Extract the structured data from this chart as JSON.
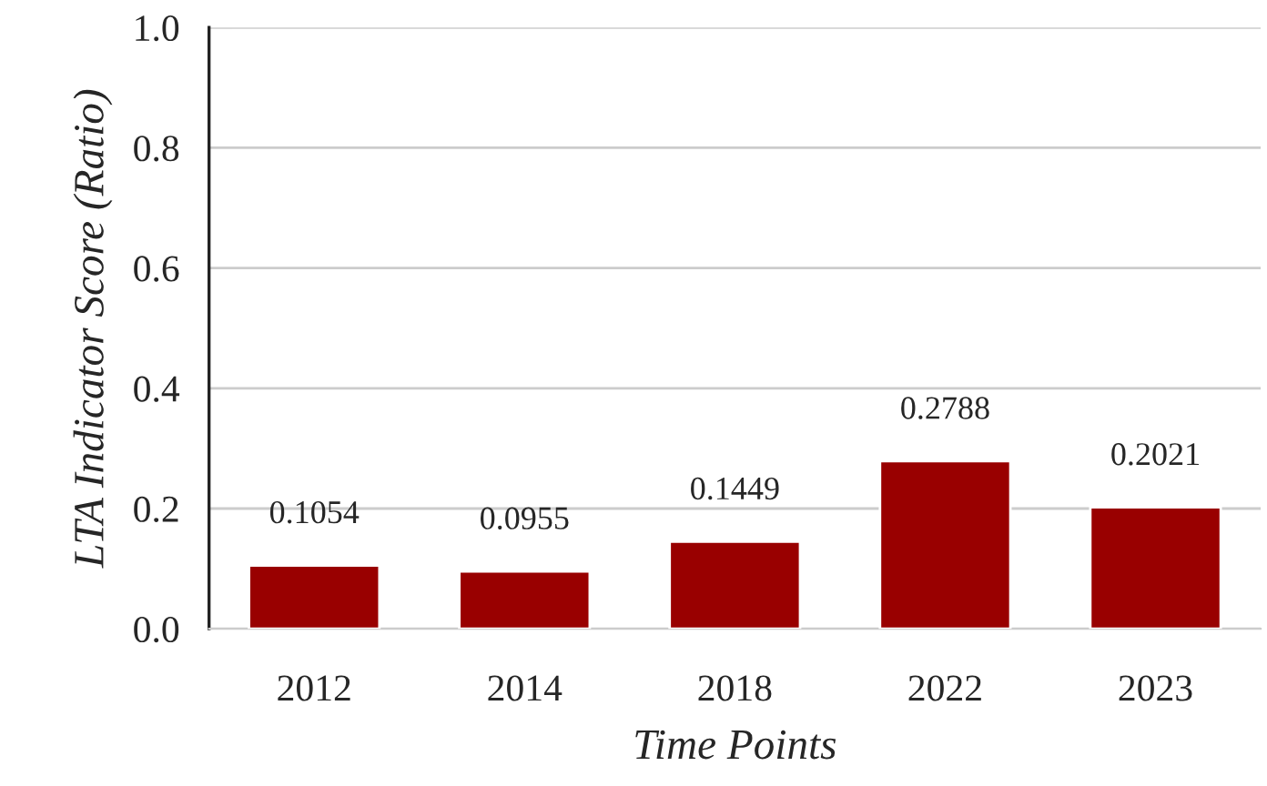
{
  "chart_data": {
    "type": "bar",
    "xlabel": "Time Points",
    "ylabel": "LTA Indicator Score (Ratio)",
    "categories": [
      "2012",
      "2014",
      "2018",
      "2022",
      "2023"
    ],
    "values": [
      0.1054,
      0.0955,
      0.1449,
      0.2788,
      0.2021
    ],
    "color": "#990000",
    "ylim": [
      0,
      1.0
    ],
    "yticks": [
      {
        "value": 0,
        "label": "0.0"
      },
      {
        "value": 0.2,
        "label": "0.2"
      },
      {
        "value": 0.4,
        "label": "0.4"
      },
      {
        "value": 0.6,
        "label": "0.6"
      },
      {
        "value": 0.8,
        "label": "0.8"
      },
      {
        "value": 1.0,
        "label": "1.0"
      }
    ],
    "grid": "y",
    "data_labels": true
  }
}
